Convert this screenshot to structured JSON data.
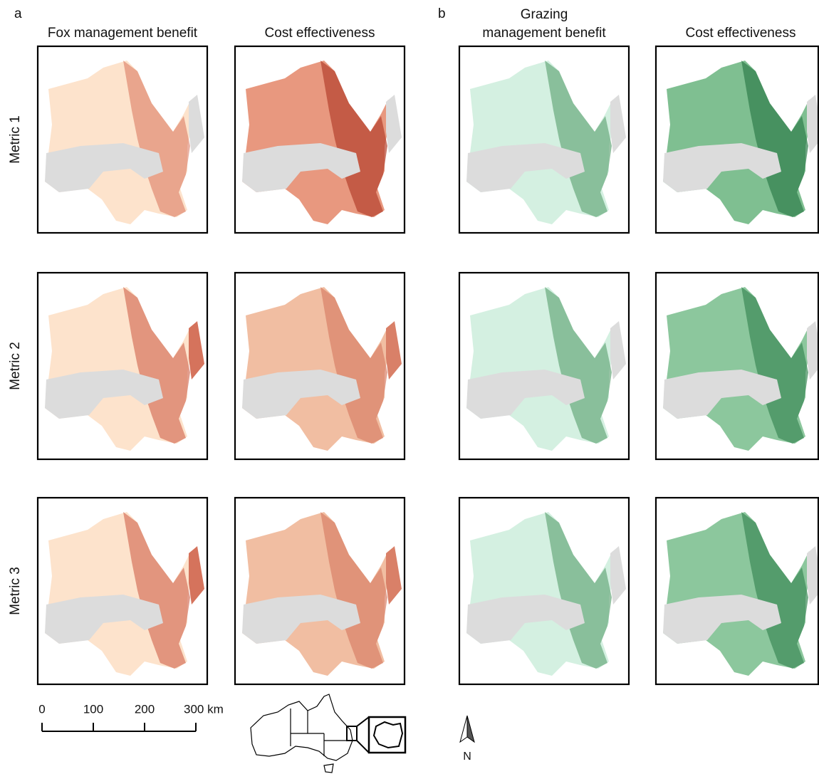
{
  "panels": [
    {
      "label": "a",
      "columns": [
        [
          "Fox management benefit"
        ],
        [
          "Cost effectiveness"
        ]
      ]
    },
    {
      "label": "b",
      "columns": [
        [
          "Grazing",
          "management benefit"
        ],
        [
          "Cost effectiveness"
        ]
      ]
    }
  ],
  "rows": [
    "Metric 1",
    "Metric 2",
    "Metric 3"
  ],
  "scale_bar": {
    "ticks": [
      "0",
      "100",
      "200",
      "300 km"
    ]
  },
  "north_arrow": "N"
}
